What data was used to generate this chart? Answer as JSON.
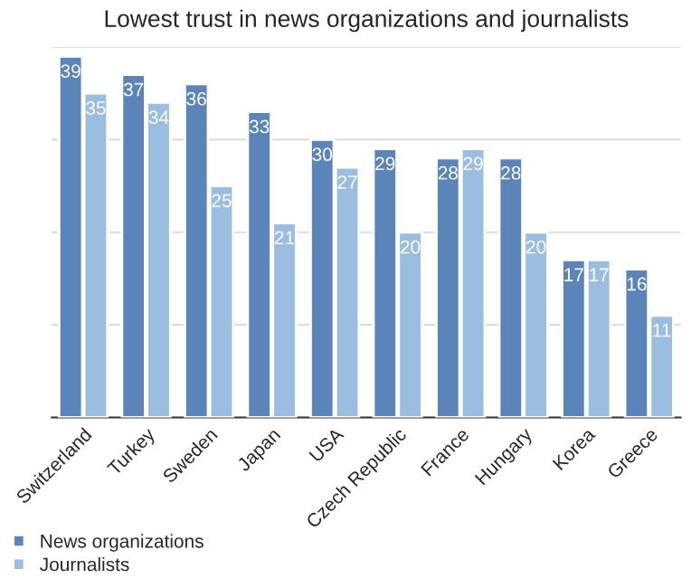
{
  "chart_data": {
    "type": "bar",
    "title": "Lowest trust in news organizations and journalists",
    "categories": [
      "Switzerland",
      "Turkey",
      "Sweden",
      "Japan",
      "USA",
      "Czech Republic",
      "France",
      "Hungary",
      "Korea",
      "Greece"
    ],
    "series": [
      {
        "name": "News organizations",
        "color": "#5b84b8",
        "values": [
          39,
          37,
          36,
          33,
          30,
          29,
          28,
          28,
          17,
          16
        ]
      },
      {
        "name": "Journalists",
        "color": "#9bbde0",
        "values": [
          35,
          34,
          25,
          21,
          27,
          20,
          29,
          20,
          17,
          11
        ]
      }
    ],
    "ylim": [
      0,
      40
    ],
    "yticks": [
      {
        "value": 0,
        "label": null
      },
      {
        "value": 10,
        "label": null
      },
      {
        "value": 20,
        "label": null
      },
      {
        "value": 30,
        "label": null
      },
      {
        "value": 40,
        "label": null
      }
    ],
    "tick_labels": "x",
    "grid": "y",
    "data_labels": true,
    "legend": "bottom left"
  }
}
